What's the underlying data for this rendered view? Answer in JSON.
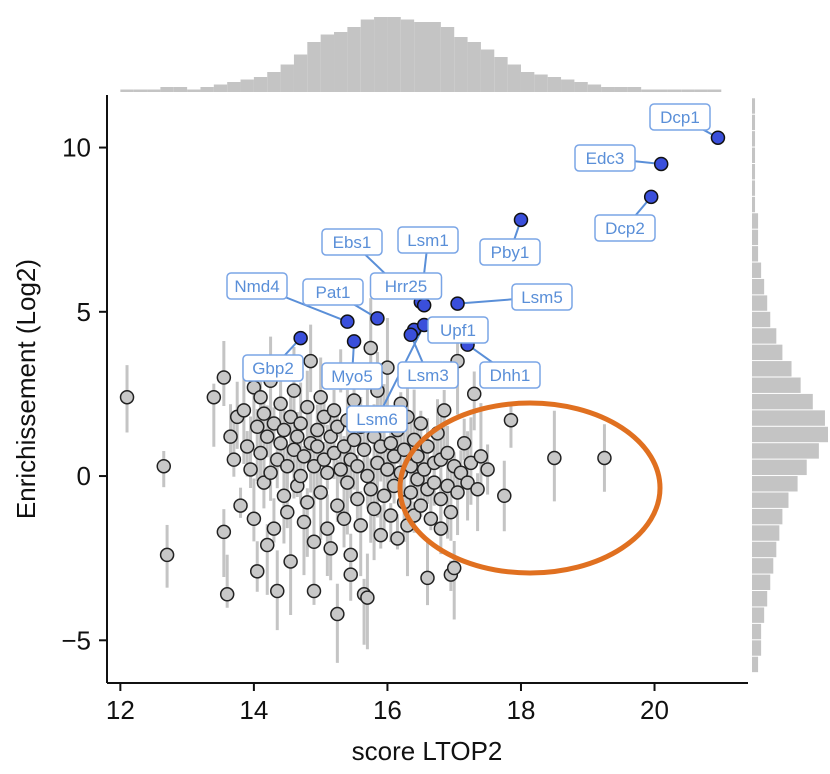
{
  "chart_data": {
    "type": "scatter",
    "xlabel": "score LTOP2",
    "ylabel": "Enrichissement (Log2)",
    "xlim": [
      11.8,
      21.4
    ],
    "ylim": [
      -6.3,
      11.6
    ],
    "xticks": [
      12,
      14,
      16,
      18,
      20
    ],
    "yticks": [
      -5,
      0,
      5,
      10
    ],
    "yticklabels": [
      "−5",
      "0",
      "5",
      "10"
    ],
    "grid": false,
    "colors": {
      "background_points": "#c8c8c8",
      "highlight_points": "#3a4fdb",
      "label_text": "#5a8fd8",
      "label_border": "#7aa5e6",
      "error_bars": "#c4c4c4",
      "histogram": "#c4c4c4",
      "ellipse": "#e07020"
    },
    "highlighted": [
      {
        "name": "Dcp1",
        "x": 20.95,
        "y": 10.3
      },
      {
        "name": "Edc3",
        "x": 20.1,
        "y": 9.5
      },
      {
        "name": "Dcp2",
        "x": 19.95,
        "y": 8.5
      },
      {
        "name": "Pby1",
        "x": 18.0,
        "y": 7.8
      },
      {
        "name": "Lsm1",
        "x": 16.5,
        "y": 5.3
      },
      {
        "name": "Ebs1",
        "x": 16.1,
        "y": 5.9
      },
      {
        "name": "Hrr25",
        "x": 16.55,
        "y": 5.2
      },
      {
        "name": "Lsm5",
        "x": 17.05,
        "y": 5.25
      },
      {
        "name": "Pat1",
        "x": 15.85,
        "y": 4.8
      },
      {
        "name": "Nmd4",
        "x": 15.4,
        "y": 4.7
      },
      {
        "name": "Upf1",
        "x": 16.4,
        "y": 4.45
      },
      {
        "name": "Lsm3",
        "x": 16.35,
        "y": 4.3
      },
      {
        "name": "Myo5",
        "x": 15.5,
        "y": 4.1
      },
      {
        "name": "Gbp2",
        "x": 14.7,
        "y": 4.2
      },
      {
        "name": "Lsm6",
        "x": 16.55,
        "y": 4.6
      },
      {
        "name": "Dhh1",
        "x": 17.2,
        "y": 4.0
      }
    ],
    "points": [
      {
        "x": 12.1,
        "y": 2.4
      },
      {
        "x": 12.65,
        "y": 0.3
      },
      {
        "x": 12.7,
        "y": -2.4
      },
      {
        "x": 13.4,
        "y": 2.4
      },
      {
        "x": 13.55,
        "y": 3.0
      },
      {
        "x": 13.55,
        "y": -1.7
      },
      {
        "x": 13.6,
        "y": -3.6
      },
      {
        "x": 13.65,
        "y": 1.2
      },
      {
        "x": 13.7,
        "y": 0.5
      },
      {
        "x": 13.75,
        "y": 1.8
      },
      {
        "x": 13.8,
        "y": -0.9
      },
      {
        "x": 13.85,
        "y": 2.0
      },
      {
        "x": 13.9,
        "y": 0.9
      },
      {
        "x": 13.95,
        "y": 0.2
      },
      {
        "x": 14.0,
        "y": 2.7
      },
      {
        "x": 14.0,
        "y": -1.3
      },
      {
        "x": 14.05,
        "y": 1.5
      },
      {
        "x": 14.05,
        "y": -2.9
      },
      {
        "x": 14.1,
        "y": 0.7
      },
      {
        "x": 14.1,
        "y": 2.4
      },
      {
        "x": 14.15,
        "y": -0.2
      },
      {
        "x": 14.15,
        "y": 1.9
      },
      {
        "x": 14.2,
        "y": -2.1
      },
      {
        "x": 14.2,
        "y": 1.2
      },
      {
        "x": 14.25,
        "y": 0.1
      },
      {
        "x": 14.25,
        "y": 2.9
      },
      {
        "x": 14.3,
        "y": 1.6
      },
      {
        "x": 14.3,
        "y": -1.6
      },
      {
        "x": 14.35,
        "y": 0.5
      },
      {
        "x": 14.35,
        "y": -3.5
      },
      {
        "x": 14.4,
        "y": 1.0
      },
      {
        "x": 14.4,
        "y": 2.2
      },
      {
        "x": 14.45,
        "y": -0.6
      },
      {
        "x": 14.45,
        "y": 1.4
      },
      {
        "x": 14.5,
        "y": 0.3
      },
      {
        "x": 14.5,
        "y": -1.1
      },
      {
        "x": 14.55,
        "y": 1.8
      },
      {
        "x": 14.55,
        "y": -2.6
      },
      {
        "x": 14.6,
        "y": 0.8
      },
      {
        "x": 14.6,
        "y": 2.6
      },
      {
        "x": 14.65,
        "y": -0.3
      },
      {
        "x": 14.65,
        "y": 1.2
      },
      {
        "x": 14.7,
        "y": 0.0
      },
      {
        "x": 14.7,
        "y": 1.6
      },
      {
        "x": 14.75,
        "y": -1.4
      },
      {
        "x": 14.75,
        "y": 0.6
      },
      {
        "x": 14.8,
        "y": 2.1
      },
      {
        "x": 14.8,
        "y": -0.8
      },
      {
        "x": 14.85,
        "y": 1.0
      },
      {
        "x": 14.85,
        "y": 3.5
      },
      {
        "x": 14.9,
        "y": 0.3
      },
      {
        "x": 14.9,
        "y": -2.0
      },
      {
        "x": 14.95,
        "y": 1.4
      },
      {
        "x": 14.95,
        "y": 0.9
      },
      {
        "x": 15.0,
        "y": 2.4
      },
      {
        "x": 15.0,
        "y": -0.5
      },
      {
        "x": 15.05,
        "y": 0.5
      },
      {
        "x": 15.05,
        "y": 1.8
      },
      {
        "x": 15.1,
        "y": -1.6
      },
      {
        "x": 15.1,
        "y": 0.1
      },
      {
        "x": 15.15,
        "y": 1.2
      },
      {
        "x": 15.15,
        "y": -2.2
      },
      {
        "x": 15.2,
        "y": 0.7
      },
      {
        "x": 15.2,
        "y": 2.0
      },
      {
        "x": 15.25,
        "y": -0.9
      },
      {
        "x": 15.25,
        "y": 1.5
      },
      {
        "x": 15.3,
        "y": 0.2
      },
      {
        "x": 15.3,
        "y": 3.0
      },
      {
        "x": 15.35,
        "y": -1.3
      },
      {
        "x": 15.35,
        "y": 0.9
      },
      {
        "x": 15.4,
        "y": 1.7
      },
      {
        "x": 15.4,
        "y": -0.2
      },
      {
        "x": 15.45,
        "y": 0.5
      },
      {
        "x": 15.45,
        "y": -3.0
      },
      {
        "x": 15.5,
        "y": 1.1
      },
      {
        "x": 15.5,
        "y": 2.3
      },
      {
        "x": 15.55,
        "y": -0.7
      },
      {
        "x": 15.55,
        "y": 0.3
      },
      {
        "x": 15.6,
        "y": 1.5
      },
      {
        "x": 15.6,
        "y": -1.5
      },
      {
        "x": 15.65,
        "y": 0.8
      },
      {
        "x": 15.65,
        "y": -3.6
      },
      {
        "x": 15.7,
        "y": 0.0
      },
      {
        "x": 15.7,
        "y": 1.9
      },
      {
        "x": 15.75,
        "y": -0.4
      },
      {
        "x": 15.75,
        "y": 3.9
      },
      {
        "x": 15.8,
        "y": 1.2
      },
      {
        "x": 15.8,
        "y": -1.0
      },
      {
        "x": 15.85,
        "y": 0.4
      },
      {
        "x": 15.85,
        "y": 2.6
      },
      {
        "x": 15.9,
        "y": -1.8
      },
      {
        "x": 15.9,
        "y": 0.9
      },
      {
        "x": 15.95,
        "y": 1.6
      },
      {
        "x": 15.95,
        "y": -0.6
      },
      {
        "x": 16.0,
        "y": 0.2
      },
      {
        "x": 16.0,
        "y": 3.3
      },
      {
        "x": 16.05,
        "y": -1.2
      },
      {
        "x": 16.05,
        "y": 1.0
      },
      {
        "x": 16.1,
        "y": 0.6
      },
      {
        "x": 16.1,
        "y": -0.3
      },
      {
        "x": 16.15,
        "y": 1.4
      },
      {
        "x": 16.15,
        "y": -1.9
      },
      {
        "x": 16.2,
        "y": 0.1
      },
      {
        "x": 16.2,
        "y": 2.2
      },
      {
        "x": 16.25,
        "y": -0.8
      },
      {
        "x": 16.25,
        "y": 0.8
      },
      {
        "x": 16.3,
        "y": -1.5
      },
      {
        "x": 16.3,
        "y": 1.8
      },
      {
        "x": 16.35,
        "y": 0.3
      },
      {
        "x": 16.35,
        "y": -0.5
      },
      {
        "x": 16.4,
        "y": 1.1
      },
      {
        "x": 16.4,
        "y": -1.2
      },
      {
        "x": 16.45,
        "y": 0.6
      },
      {
        "x": 16.45,
        "y": -0.1
      },
      {
        "x": 16.5,
        "y": -0.9
      },
      {
        "x": 16.5,
        "y": 1.6
      },
      {
        "x": 16.55,
        "y": 0.2
      },
      {
        "x": 16.6,
        "y": -0.4
      },
      {
        "x": 16.6,
        "y": 0.9
      },
      {
        "x": 16.65,
        "y": -1.3
      },
      {
        "x": 16.7,
        "y": 0.4
      },
      {
        "x": 16.7,
        "y": -0.2
      },
      {
        "x": 16.75,
        "y": 1.3
      },
      {
        "x": 16.8,
        "y": -0.7
      },
      {
        "x": 16.8,
        "y": 0.5
      },
      {
        "x": 16.85,
        "y": 2.0
      },
      {
        "x": 16.9,
        "y": -0.3
      },
      {
        "x": 16.9,
        "y": 0.7
      },
      {
        "x": 16.95,
        "y": -1.1
      },
      {
        "x": 17.0,
        "y": 0.3
      },
      {
        "x": 17.05,
        "y": -0.5
      },
      {
        "x": 17.05,
        "y": 3.5
      },
      {
        "x": 17.1,
        "y": 0.1
      },
      {
        "x": 17.15,
        "y": 1.0
      },
      {
        "x": 17.2,
        "y": -0.2
      },
      {
        "x": 17.25,
        "y": 0.4
      },
      {
        "x": 17.3,
        "y": 2.5
      },
      {
        "x": 17.35,
        "y": -0.4
      },
      {
        "x": 17.4,
        "y": 0.6
      },
      {
        "x": 17.5,
        "y": 0.2
      },
      {
        "x": 17.75,
        "y": -0.6
      },
      {
        "x": 17.85,
        "y": 1.7
      },
      {
        "x": 18.5,
        "y": 0.55
      },
      {
        "x": 19.25,
        "y": 0.55
      },
      {
        "x": 16.6,
        "y": -3.1
      },
      {
        "x": 16.95,
        "y": -3.0
      },
      {
        "x": 17.0,
        "y": -2.8
      },
      {
        "x": 15.7,
        "y": -3.7
      },
      {
        "x": 15.25,
        "y": -4.2
      },
      {
        "x": 14.9,
        "y": -3.5
      },
      {
        "x": 16.8,
        "y": -1.6
      },
      {
        "x": 15.45,
        "y": -2.4
      }
    ],
    "marginal_x": {
      "bin_start": 12.0,
      "bin_width": 0.2,
      "values": [
        1,
        1,
        1,
        2,
        2,
        1,
        2,
        3,
        4,
        5,
        6,
        8,
        11,
        15,
        20,
        23,
        24,
        26,
        29,
        30,
        30,
        29,
        28,
        28,
        26,
        22,
        20,
        17,
        14,
        11,
        8,
        7,
        6,
        5,
        4,
        3,
        2,
        2,
        2,
        1,
        1,
        1,
        1,
        1,
        1
      ]
    },
    "marginal_y": {
      "bin_start": -6.0,
      "bin_width": 0.5,
      "values": [
        2,
        3,
        3,
        4,
        5,
        6,
        7,
        8,
        9,
        10,
        12,
        15,
        18,
        22,
        25,
        24,
        20,
        16,
        13,
        10,
        8,
        6,
        5,
        4,
        3,
        2,
        2,
        2,
        1,
        1,
        1,
        1,
        1,
        1,
        1
      ]
    }
  }
}
